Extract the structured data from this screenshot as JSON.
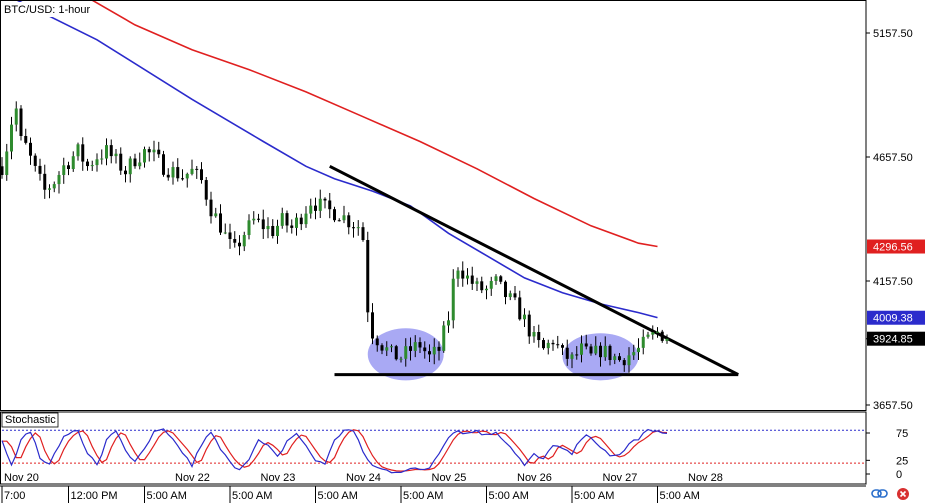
{
  "title": "BTC/USD: 1-hour",
  "indicator_label": "Stochastic",
  "icons": {
    "link": "link-icon",
    "close": "close-icon"
  },
  "colors": {
    "bull": "#2e8b2e",
    "bear": "#000000",
    "ma_fast": "#2b2bcc",
    "ma_slow": "#e02020",
    "ellipse_fill": "#8c8cf0",
    "stoch_k": "#2b2bcc",
    "stoch_d": "#e02020",
    "overbought_line": "#2b2bcc",
    "oversold_line": "#e02020",
    "current_price_box": "#000000",
    "ma_slow_box": "#e02020",
    "ma_fast_box": "#2b2bcc"
  },
  "chart_data": {
    "type": "candlestick",
    "title": "BTC/USD: 1-hour",
    "y_ticks": [
      "5157.50",
      "4657.50",
      "4157.50",
      "3657.50"
    ],
    "y_tick_values": [
      5157.5,
      4657.5,
      4157.5,
      3657.5
    ],
    "ylim": [
      3600,
      5190
    ],
    "x_ticks": [
      {
        "label": "Nov 20",
        "row": 1,
        "hour": 0
      },
      {
        "label": "Nov 22",
        "row": 1,
        "hour": 36
      },
      {
        "label": "Nov 23",
        "row": 1,
        "hour": 54
      },
      {
        "label": "Nov 24",
        "row": 1,
        "hour": 72
      },
      {
        "label": "Nov 25",
        "row": 1,
        "hour": 90
      },
      {
        "label": "Nov 26",
        "row": 1,
        "hour": 108
      },
      {
        "label": "Nov 27",
        "row": 1,
        "hour": 126
      },
      {
        "label": "Nov 28",
        "row": 1,
        "hour": 144
      },
      {
        "label": "7:00",
        "row": 2,
        "hour": 0
      },
      {
        "label": "12:00 PM",
        "row": 2,
        "hour": 14
      },
      {
        "label": "5:00 AM",
        "row": 2,
        "hour": 30
      },
      {
        "label": "5:00 AM",
        "row": 2,
        "hour": 48
      },
      {
        "label": "5:00 AM",
        "row": 2,
        "hour": 66
      },
      {
        "label": "5:00 AM",
        "row": 2,
        "hour": 84
      },
      {
        "label": "5:00 AM",
        "row": 2,
        "hour": 102
      },
      {
        "label": "5:00 AM",
        "row": 2,
        "hour": 120
      },
      {
        "label": "5:00 AM",
        "row": 2,
        "hour": 138
      }
    ],
    "price_anchors": [
      [
        0,
        4620
      ],
      [
        1,
        4700
      ],
      [
        2,
        4800
      ],
      [
        3,
        4850
      ],
      [
        4,
        4720
      ],
      [
        5,
        4700
      ],
      [
        7,
        4600
      ],
      [
        9,
        4520
      ],
      [
        11,
        4560
      ],
      [
        13,
        4620
      ],
      [
        16,
        4680
      ],
      [
        18,
        4620
      ],
      [
        20,
        4660
      ],
      [
        22,
        4680
      ],
      [
        24,
        4640
      ],
      [
        26,
        4600
      ],
      [
        28,
        4650
      ],
      [
        30,
        4680
      ],
      [
        32,
        4660
      ],
      [
        34,
        4620
      ],
      [
        36,
        4600
      ],
      [
        38,
        4580
      ],
      [
        40,
        4600
      ],
      [
        42,
        4560
      ],
      [
        44,
        4450
      ],
      [
        46,
        4380
      ],
      [
        48,
        4300
      ],
      [
        49,
        4280
      ],
      [
        51,
        4350
      ],
      [
        53,
        4400
      ],
      [
        55,
        4380
      ],
      [
        57,
        4360
      ],
      [
        59,
        4400
      ],
      [
        61,
        4370
      ],
      [
        63,
        4420
      ],
      [
        65,
        4480
      ],
      [
        67,
        4460
      ],
      [
        69,
        4440
      ],
      [
        71,
        4430
      ],
      [
        73,
        4400
      ],
      [
        75,
        4380
      ],
      [
        76,
        4330
      ],
      [
        77,
        4050
      ],
      [
        78,
        3950
      ],
      [
        80,
        3900
      ],
      [
        82,
        3860
      ],
      [
        84,
        3850
      ],
      [
        86,
        3880
      ],
      [
        88,
        3900
      ],
      [
        90,
        3850
      ],
      [
        92,
        3880
      ],
      [
        94,
        4010
      ],
      [
        95,
        4150
      ],
      [
        96,
        4220
      ],
      [
        98,
        4170
      ],
      [
        100,
        4130
      ],
      [
        102,
        4120
      ],
      [
        104,
        4150
      ],
      [
        106,
        4100
      ],
      [
        108,
        4060
      ],
      [
        110,
        4000
      ],
      [
        112,
        3920
      ],
      [
        114,
        3880
      ],
      [
        116,
        3920
      ],
      [
        118,
        3860
      ],
      [
        120,
        3840
      ],
      [
        122,
        3880
      ],
      [
        124,
        3850
      ],
      [
        126,
        3880
      ],
      [
        128,
        3860
      ],
      [
        130,
        3840
      ],
      [
        132,
        3860
      ],
      [
        134,
        3880
      ],
      [
        136,
        3920
      ],
      [
        138,
        3950
      ],
      [
        140,
        3935
      ]
    ],
    "candle_count": 141,
    "series": [
      {
        "name": "",
        "type": "line",
        "points": [
          [
            0,
            5320
          ],
          [
            20,
            5130
          ],
          [
            40,
            4890
          ],
          [
            55,
            4720
          ],
          [
            64,
            4620
          ],
          [
            70,
            4570
          ],
          [
            78,
            4520
          ],
          [
            86,
            4460
          ],
          [
            94,
            4350
          ],
          [
            102,
            4260
          ],
          [
            110,
            4170
          ],
          [
            118,
            4110
          ],
          [
            126,
            4065
          ],
          [
            134,
            4030
          ],
          [
            138,
            4010
          ]
        ]
      },
      {
        "name": "",
        "type": "line",
        "points": [
          [
            0,
            5500
          ],
          [
            28,
            5190
          ],
          [
            40,
            5090
          ],
          [
            52,
            5010
          ],
          [
            64,
            4920
          ],
          [
            76,
            4820
          ],
          [
            88,
            4720
          ],
          [
            100,
            4610
          ],
          [
            112,
            4490
          ],
          [
            124,
            4380
          ],
          [
            134,
            4310
          ],
          [
            138,
            4296.56
          ]
        ]
      }
    ],
    "price_labels": [
      {
        "text": "4296.56",
        "value": 4296.56,
        "color_key": "ma_slow_box"
      },
      {
        "text": "4009.38",
        "value": 4009.38,
        "color_key": "ma_fast_box"
      },
      {
        "text": "3924.85",
        "value": 3924.85,
        "color_key": "current_price_box",
        "current": true
      }
    ],
    "annotations": {
      "descending_trendline": [
        [
          69,
          4620
        ],
        [
          155,
          3780
        ]
      ],
      "support_line": [
        [
          70,
          3780
        ],
        [
          155,
          3780
        ]
      ],
      "ellipses": [
        {
          "center_hour": 85,
          "center_price": 3862,
          "width_hours": 16,
          "height_price": 210
        },
        {
          "center_hour": 126,
          "center_price": 3852,
          "width_hours": 16,
          "height_price": 190
        }
      ]
    },
    "stochastic": {
      "y_ticks": [
        "75",
        "25",
        "0"
      ],
      "y_tick_values": [
        75,
        25,
        0
      ],
      "ylim": [
        0,
        100
      ],
      "overbought": 80,
      "oversold": 20,
      "k_anchors": [
        [
          0,
          60
        ],
        [
          2,
          20
        ],
        [
          4,
          60
        ],
        [
          6,
          80
        ],
        [
          8,
          30
        ],
        [
          10,
          15
        ],
        [
          12,
          55
        ],
        [
          14,
          75
        ],
        [
          16,
          80
        ],
        [
          18,
          40
        ],
        [
          20,
          15
        ],
        [
          22,
          60
        ],
        [
          24,
          80
        ],
        [
          26,
          45
        ],
        [
          28,
          20
        ],
        [
          30,
          45
        ],
        [
          32,
          75
        ],
        [
          34,
          80
        ],
        [
          36,
          60
        ],
        [
          38,
          40
        ],
        [
          40,
          15
        ],
        [
          42,
          55
        ],
        [
          44,
          75
        ],
        [
          46,
          45
        ],
        [
          48,
          20
        ],
        [
          50,
          10
        ],
        [
          52,
          30
        ],
        [
          54,
          60
        ],
        [
          56,
          50
        ],
        [
          58,
          30
        ],
        [
          60,
          60
        ],
        [
          62,
          75
        ],
        [
          64,
          50
        ],
        [
          66,
          25
        ],
        [
          68,
          20
        ],
        [
          70,
          60
        ],
        [
          72,
          82
        ],
        [
          74,
          78
        ],
        [
          76,
          40
        ],
        [
          78,
          15
        ],
        [
          80,
          8
        ],
        [
          82,
          5
        ],
        [
          84,
          6
        ],
        [
          86,
          9
        ],
        [
          88,
          7
        ],
        [
          90,
          12
        ],
        [
          92,
          40
        ],
        [
          94,
          70
        ],
        [
          96,
          80
        ],
        [
          98,
          74
        ],
        [
          100,
          80
        ],
        [
          102,
          70
        ],
        [
          104,
          78
        ],
        [
          106,
          60
        ],
        [
          108,
          40
        ],
        [
          110,
          15
        ],
        [
          112,
          35
        ],
        [
          114,
          25
        ],
        [
          116,
          55
        ],
        [
          118,
          45
        ],
        [
          120,
          35
        ],
        [
          122,
          65
        ],
        [
          124,
          70
        ],
        [
          126,
          50
        ],
        [
          128,
          30
        ],
        [
          130,
          35
        ],
        [
          132,
          55
        ],
        [
          134,
          65
        ],
        [
          136,
          80
        ],
        [
          138,
          75
        ],
        [
          140,
          78
        ]
      ]
    }
  }
}
